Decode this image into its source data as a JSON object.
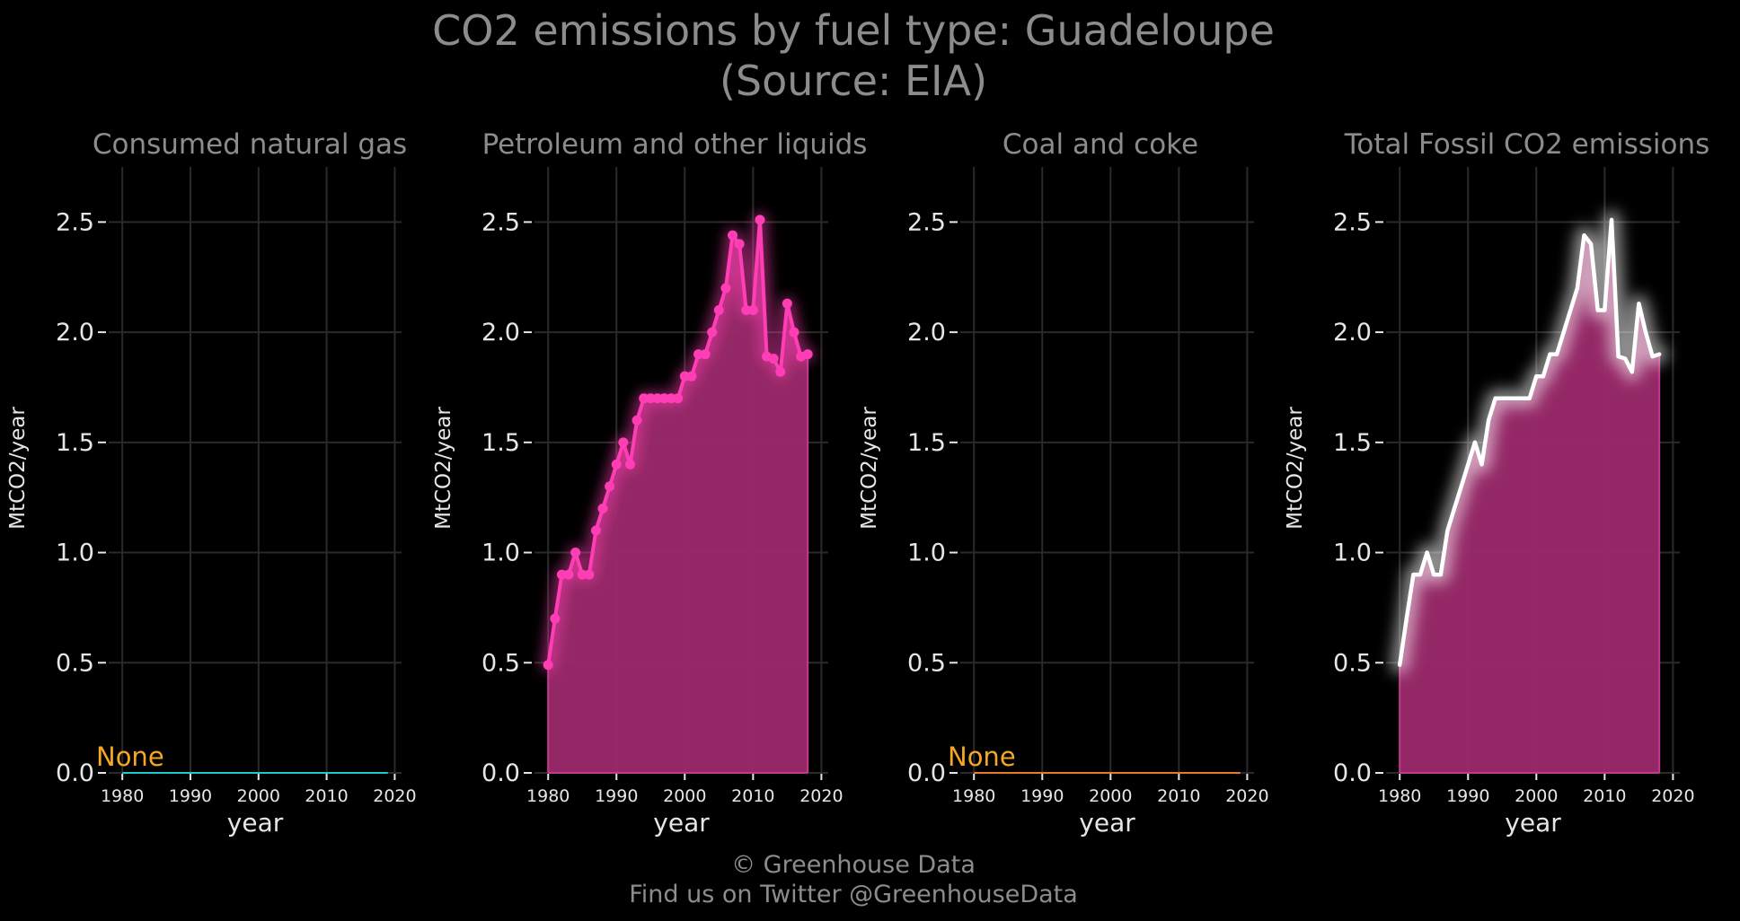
{
  "title_line1": "CO2 emissions by fuel type: Guadeloupe",
  "title_line2": "(Source: EIA)",
  "footer": {
    "copyright": "© Greenhouse Data",
    "twitter": "Find us on Twitter @GreenhouseData"
  },
  "colors": {
    "background": "#000000",
    "grid": "#2a2a2a",
    "title": "#8c8c8c",
    "tick_text": "#e6e6e6",
    "gas": "#1ec8c8",
    "petroleum": "#ff3db4",
    "petroleum_fill": "#9c2a6c",
    "coal": "#e8782a",
    "total_line": "#ffffff",
    "none_label": "#f5a623"
  },
  "chart_data": [
    {
      "type": "line",
      "title": "Consumed natural gas",
      "xlabel": "year",
      "ylabel": "MtCO2/year",
      "xlim": [
        1978,
        2021
      ],
      "ylim": [
        0,
        2.75
      ],
      "xticks": [
        "1980",
        "1990",
        "2000",
        "2010",
        "2020"
      ],
      "yticks": [
        "0.0",
        "0.5",
        "1.0",
        "1.5",
        "2.0",
        "2.5"
      ],
      "annotation": "None",
      "series": [
        {
          "x": [
            1980,
            2019
          ],
          "y": [
            0,
            0
          ],
          "color": "#1ec8c8"
        }
      ],
      "grid": true
    },
    {
      "type": "area",
      "title": "Petroleum and other liquids",
      "xlabel": "year",
      "ylabel": "MtCO2/year",
      "xlim": [
        1978,
        2021
      ],
      "ylim": [
        0,
        2.75
      ],
      "xticks": [
        "1980",
        "1990",
        "2000",
        "2010",
        "2020"
      ],
      "yticks": [
        "0.0",
        "0.5",
        "1.0",
        "1.5",
        "2.0",
        "2.5"
      ],
      "markers": true,
      "series": [
        {
          "x": [
            1980,
            1981,
            1982,
            1983,
            1984,
            1985,
            1986,
            1987,
            1988,
            1989,
            1990,
            1991,
            1992,
            1993,
            1994,
            1995,
            1996,
            1997,
            1998,
            1999,
            2000,
            2001,
            2002,
            2003,
            2004,
            2005,
            2006,
            2007,
            2008,
            2009,
            2010,
            2011,
            2012,
            2013,
            2014,
            2015,
            2016,
            2017,
            2018
          ],
          "y": [
            0.49,
            0.7,
            0.9,
            0.9,
            1.0,
            0.9,
            0.9,
            1.1,
            1.2,
            1.3,
            1.4,
            1.5,
            1.4,
            1.6,
            1.7,
            1.7,
            1.7,
            1.7,
            1.7,
            1.7,
            1.8,
            1.8,
            1.9,
            1.9,
            2.0,
            2.1,
            2.2,
            2.44,
            2.4,
            2.1,
            2.1,
            2.51,
            1.89,
            1.88,
            1.82,
            2.13,
            2.0,
            1.89,
            1.9
          ],
          "color": "#ff3db4"
        }
      ],
      "grid": true
    },
    {
      "type": "line",
      "title": "Coal and coke",
      "xlabel": "year",
      "ylabel": "MtCO2/year",
      "xlim": [
        1978,
        2021
      ],
      "ylim": [
        0,
        2.75
      ],
      "xticks": [
        "1980",
        "1990",
        "2000",
        "2010",
        "2020"
      ],
      "yticks": [
        "0.0",
        "0.5",
        "1.0",
        "1.5",
        "2.0",
        "2.5"
      ],
      "annotation": "None",
      "series": [
        {
          "x": [
            1980,
            2019
          ],
          "y": [
            0,
            0
          ],
          "color": "#e8782a"
        }
      ],
      "grid": true
    },
    {
      "type": "area",
      "title": "Total Fossil CO2 emissions",
      "xlabel": "year",
      "ylabel": "MtCO2/year",
      "xlim": [
        1978,
        2021
      ],
      "ylim": [
        0,
        2.75
      ],
      "xticks": [
        "1980",
        "1990",
        "2000",
        "2010",
        "2020"
      ],
      "yticks": [
        "0.0",
        "0.5",
        "1.0",
        "1.5",
        "2.0",
        "2.5"
      ],
      "markers": false,
      "series": [
        {
          "x": [
            1980,
            1981,
            1982,
            1983,
            1984,
            1985,
            1986,
            1987,
            1988,
            1989,
            1990,
            1991,
            1992,
            1993,
            1994,
            1995,
            1996,
            1997,
            1998,
            1999,
            2000,
            2001,
            2002,
            2003,
            2004,
            2005,
            2006,
            2007,
            2008,
            2009,
            2010,
            2011,
            2012,
            2013,
            2014,
            2015,
            2016,
            2017,
            2018
          ],
          "y": [
            0.49,
            0.7,
            0.9,
            0.9,
            1.0,
            0.9,
            0.9,
            1.1,
            1.2,
            1.3,
            1.4,
            1.5,
            1.4,
            1.6,
            1.7,
            1.7,
            1.7,
            1.7,
            1.7,
            1.7,
            1.8,
            1.8,
            1.9,
            1.9,
            2.0,
            2.1,
            2.2,
            2.44,
            2.4,
            2.1,
            2.1,
            2.51,
            1.89,
            1.88,
            1.82,
            2.13,
            2.0,
            1.89,
            1.9
          ],
          "color": "#ffffff"
        }
      ],
      "grid": true
    }
  ]
}
